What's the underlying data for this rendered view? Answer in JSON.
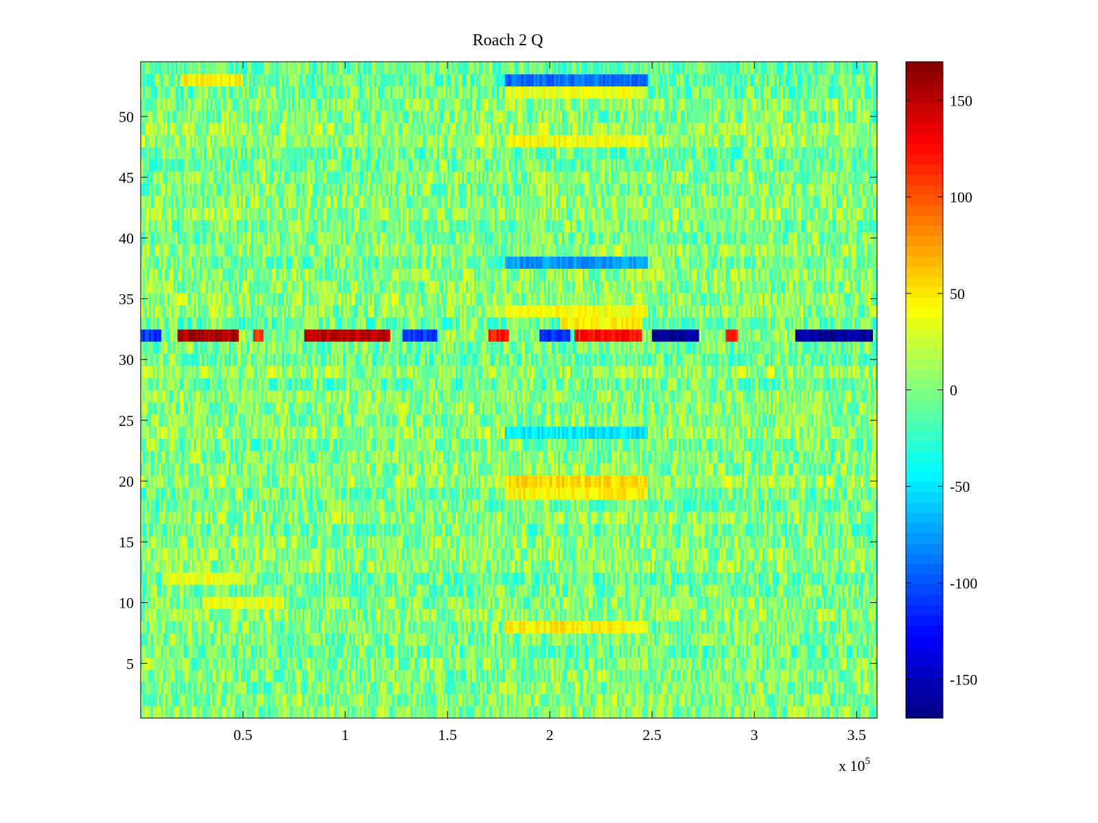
{
  "chart_data": {
    "type": "heatmap",
    "title": "Roach 2 Q",
    "xlabel": "",
    "ylabel": "",
    "x_exponent_label": {
      "prefix": "x 10",
      "exponent": "5"
    },
    "xlim": [
      0,
      3.6
    ],
    "ylim": [
      0.5,
      54.5
    ],
    "x_ticks": [
      0.5,
      1,
      1.5,
      2,
      2.5,
      3,
      3.5
    ],
    "x_tick_labels": [
      "0.5",
      "1",
      "1.5",
      "2",
      "2.5",
      "3",
      "3.5"
    ],
    "y_ticks": [
      5,
      10,
      15,
      20,
      25,
      30,
      35,
      40,
      45,
      50
    ],
    "y_tick_labels": [
      "5",
      "10",
      "15",
      "20",
      "25",
      "30",
      "35",
      "40",
      "45",
      "50"
    ],
    "rows": 54,
    "colormap": "jet",
    "clim": [
      -170,
      170
    ],
    "colorbar": {
      "ticks": [
        150,
        100,
        50,
        0,
        -50,
        -100,
        -150
      ],
      "tick_labels": [
        "150",
        "100",
        "50",
        "0",
        "-50",
        "-100",
        "-150"
      ]
    },
    "background_mean": 0,
    "noise_amplitude": 35,
    "notable_features": [
      {
        "row": 32,
        "x_range": [
          0.0,
          0.1
        ],
        "value": -110
      },
      {
        "row": 32,
        "x_range": [
          0.18,
          0.48
        ],
        "value": 155
      },
      {
        "row": 32,
        "x_range": [
          0.55,
          0.6
        ],
        "value": 110
      },
      {
        "row": 32,
        "x_range": [
          0.8,
          1.22
        ],
        "value": 150
      },
      {
        "row": 32,
        "x_range": [
          1.28,
          1.45
        ],
        "value": -110
      },
      {
        "row": 32,
        "x_range": [
          1.7,
          1.8
        ],
        "value": 120
      },
      {
        "row": 32,
        "x_range": [
          1.95,
          2.1
        ],
        "value": -110
      },
      {
        "row": 32,
        "x_range": [
          2.12,
          2.45
        ],
        "value": 125
      },
      {
        "row": 32,
        "x_range": [
          2.5,
          2.73
        ],
        "value": -165
      },
      {
        "row": 32,
        "x_range": [
          2.86,
          2.92
        ],
        "value": 120
      },
      {
        "row": 32,
        "x_range": [
          3.2,
          3.58
        ],
        "value": -160
      },
      {
        "row": 53,
        "x_range": [
          1.78,
          2.48
        ],
        "value": -90
      },
      {
        "row": 53,
        "x_range": [
          0.2,
          0.5
        ],
        "value": 45
      },
      {
        "row": 38,
        "x_range": [
          1.78,
          2.48
        ],
        "value": -75
      },
      {
        "row": 20,
        "x_range": [
          1.78,
          2.48
        ],
        "value": 55
      },
      {
        "row": 19,
        "x_range": [
          1.78,
          2.48
        ],
        "value": 45
      },
      {
        "row": 34,
        "x_range": [
          1.78,
          2.48
        ],
        "value": 40
      },
      {
        "row": 33,
        "x_range": [
          2.05,
          2.45
        ],
        "value": 45
      },
      {
        "row": 8,
        "x_range": [
          1.78,
          2.48
        ],
        "value": 45
      },
      {
        "row": 24,
        "x_range": [
          1.78,
          2.48
        ],
        "value": -50
      },
      {
        "row": 48,
        "x_range": [
          1.78,
          2.48
        ],
        "value": 40
      },
      {
        "row": 52,
        "x_range": [
          1.78,
          2.48
        ],
        "value": 35
      },
      {
        "row": 12,
        "x_range": [
          0.1,
          0.5
        ],
        "value": 35
      },
      {
        "row": 10,
        "x_range": [
          0.3,
          0.7
        ],
        "value": 35
      }
    ]
  }
}
